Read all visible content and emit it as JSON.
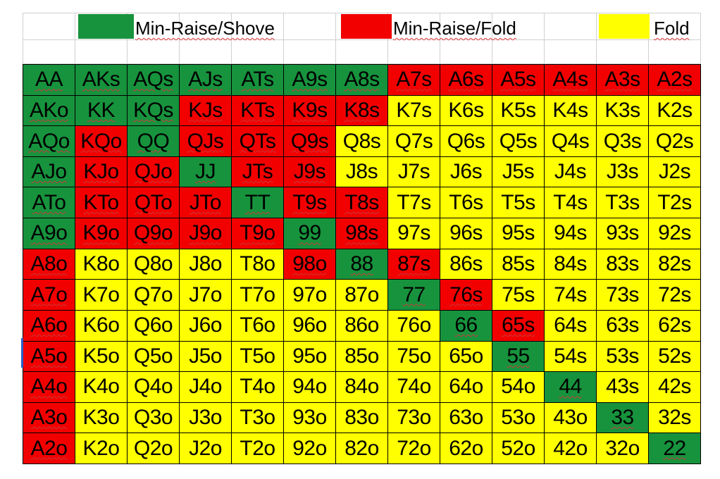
{
  "colors": {
    "shove": "#17933d",
    "fold_after_raise": "#f20000",
    "fold": "#ffff00",
    "gridline": "#d0d0d0"
  },
  "legend": [
    {
      "key": "S",
      "label": "Min-Raise/Shove",
      "color": "#17933d"
    },
    {
      "key": "R",
      "label": "Min-Raise/Fold",
      "color": "#f20000"
    },
    {
      "key": "F",
      "label": "Fold",
      "color": "#ffff00"
    }
  ],
  "hand_chart": {
    "ranks": [
      "A",
      "K",
      "Q",
      "J",
      "T",
      "9",
      "8",
      "7",
      "6",
      "5",
      "4",
      "3",
      "2"
    ],
    "rows": [
      [
        "AA",
        "AKs",
        "AQs",
        "AJs",
        "ATs",
        "A9s",
        "A8s",
        "A7s",
        "A6s",
        "A5s",
        "A4s",
        "A3s",
        "A2s"
      ],
      [
        "AKo",
        "KK",
        "KQs",
        "KJs",
        "KTs",
        "K9s",
        "K8s",
        "K7s",
        "K6s",
        "K5s",
        "K4s",
        "K3s",
        "K2s"
      ],
      [
        "AQo",
        "KQo",
        "QQ",
        "QJs",
        "QTs",
        "Q9s",
        "Q8s",
        "Q7s",
        "Q6s",
        "Q5s",
        "Q4s",
        "Q3s",
        "Q2s"
      ],
      [
        "AJo",
        "KJo",
        "QJo",
        "JJ",
        "JTs",
        "J9s",
        "J8s",
        "J7s",
        "J6s",
        "J5s",
        "J4s",
        "J3s",
        "J2s"
      ],
      [
        "ATo",
        "KTo",
        "QTo",
        "JTo",
        "TT",
        "T9s",
        "T8s",
        "T7s",
        "T6s",
        "T5s",
        "T4s",
        "T3s",
        "T2s"
      ],
      [
        "A9o",
        "K9o",
        "Q9o",
        "J9o",
        "T9o",
        "99",
        "98s",
        "97s",
        "96s",
        "95s",
        "94s",
        "93s",
        "92s"
      ],
      [
        "A8o",
        "K8o",
        "Q8o",
        "J8o",
        "T8o",
        "98o",
        "88",
        "87s",
        "86s",
        "85s",
        "84s",
        "83s",
        "82s"
      ],
      [
        "A7o",
        "K7o",
        "Q7o",
        "J7o",
        "T7o",
        "97o",
        "87o",
        "77",
        "76s",
        "75s",
        "74s",
        "73s",
        "72s"
      ],
      [
        "A6o",
        "K6o",
        "Q6o",
        "J6o",
        "T6o",
        "96o",
        "86o",
        "76o",
        "66",
        "65s",
        "64s",
        "63s",
        "62s"
      ],
      [
        "A5o",
        "K5o",
        "Q5o",
        "J5o",
        "T5o",
        "95o",
        "85o",
        "75o",
        "65o",
        "55",
        "54s",
        "53s",
        "52s"
      ],
      [
        "A4o",
        "K4o",
        "Q4o",
        "J4o",
        "T4o",
        "94o",
        "84o",
        "74o",
        "64o",
        "54o",
        "44",
        "43s",
        "42s"
      ],
      [
        "A3o",
        "K3o",
        "Q3o",
        "J3o",
        "T3o",
        "93o",
        "83o",
        "73o",
        "63o",
        "53o",
        "43o",
        "33",
        "32s"
      ],
      [
        "A2o",
        "K2o",
        "Q2o",
        "J2o",
        "T2o",
        "92o",
        "82o",
        "72o",
        "62o",
        "52o",
        "42o",
        "32o",
        "22"
      ]
    ],
    "actions": [
      "SSSSSSSRRRRRR",
      "SSSRRRRFFFFFF",
      "SRSRRRFFFFFFF",
      "SRRSRRFFFFFFF",
      "SRRRSRRFFFFFF",
      "SRRRRSRFFFFFF",
      "RFFFFRSRFFFFF",
      "RFFFFFFSRFFFF",
      "RFFFFFFFSRFFF",
      "RFFFFFFFFSFFF",
      "RFFFFFFFFFSFF",
      "RFFFFFFFFFFSF",
      "RFFFFFFFFFFFS"
    ]
  }
}
